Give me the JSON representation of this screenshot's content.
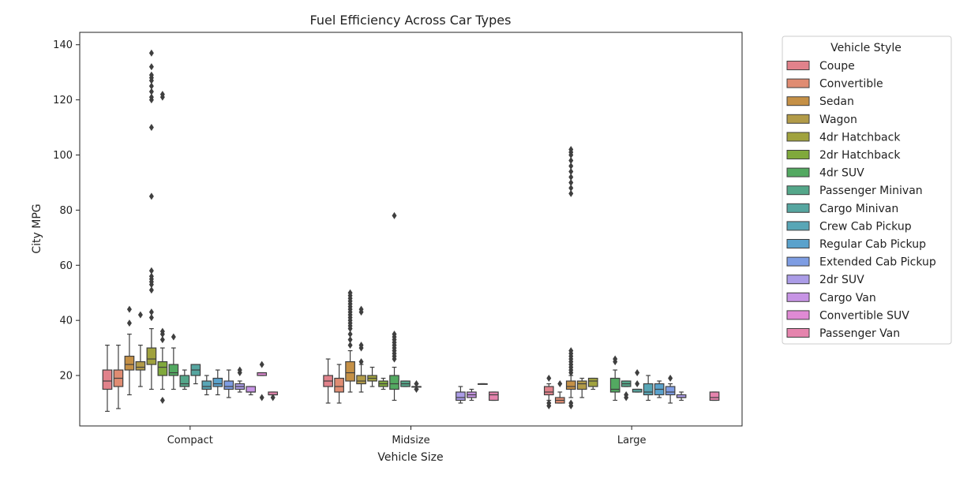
{
  "chart_data": {
    "type": "boxplot",
    "title": "Fuel Efficiency Across Car Types",
    "xlabel": "Vehicle Size",
    "ylabel": "City MPG",
    "categories": [
      "Compact",
      "Midsize",
      "Large"
    ],
    "ylim": [
      1.7,
      144.5
    ],
    "yticks": [
      20,
      40,
      60,
      80,
      100,
      120,
      140
    ],
    "legend": {
      "title": "Vehicle Style",
      "placement": "outside-right"
    },
    "grid": false,
    "series": [
      {
        "name": "Coupe",
        "color": "#e1828b",
        "boxes": [
          {
            "category": "Compact",
            "whislo": 7,
            "q1": 15,
            "median": 18,
            "q3": 22,
            "whishi": 31,
            "fliers": []
          },
          {
            "category": "Midsize",
            "whislo": 10,
            "q1": 16,
            "median": 18,
            "q3": 20,
            "whishi": 26,
            "fliers": []
          },
          {
            "category": "Large",
            "whislo": 11,
            "q1": 13,
            "median": 14,
            "q3": 16,
            "whishi": 17,
            "fliers": [
              9,
              10,
              19
            ]
          }
        ]
      },
      {
        "name": "Convertible",
        "color": "#e08c72",
        "boxes": [
          {
            "category": "Compact",
            "whislo": 8,
            "q1": 16,
            "median": 19,
            "q3": 22,
            "whishi": 31,
            "fliers": []
          },
          {
            "category": "Midsize",
            "whislo": 10,
            "q1": 14,
            "median": 16,
            "q3": 19,
            "whishi": 24,
            "fliers": []
          },
          {
            "category": "Large",
            "whislo": 10,
            "q1": 10,
            "median": 11,
            "q3": 12,
            "whishi": 14,
            "fliers": [
              17
            ]
          }
        ]
      },
      {
        "name": "Sedan",
        "color": "#c59046",
        "boxes": [
          {
            "category": "Compact",
            "whislo": 13,
            "q1": 22,
            "median": 24,
            "q3": 27,
            "whishi": 35,
            "fliers": [
              39,
              44
            ]
          },
          {
            "category": "Midsize",
            "whislo": 14,
            "q1": 18,
            "median": 21,
            "q3": 25,
            "whishi": 29,
            "fliers": [
              31,
              33,
              35,
              37,
              38,
              39,
              40,
              41,
              42,
              43,
              44,
              45,
              46,
              47,
              48,
              49,
              50
            ]
          },
          {
            "category": "Large",
            "whislo": 12,
            "q1": 15,
            "median": 16,
            "q3": 18,
            "whishi": 20,
            "fliers": [
              9,
              10,
              21,
              22,
              23,
              24,
              25,
              26,
              27,
              28,
              29,
              86,
              88,
              90,
              92,
              94,
              96,
              98,
              100,
              101,
              102
            ]
          }
        ]
      },
      {
        "name": "Wagon",
        "color": "#b29b48",
        "boxes": [
          {
            "category": "Compact",
            "whislo": 16,
            "q1": 22,
            "median": 23,
            "q3": 25,
            "whishi": 31,
            "fliers": [
              42
            ]
          },
          {
            "category": "Midsize",
            "whislo": 14,
            "q1": 17,
            "median": 18,
            "q3": 20,
            "whishi": 24,
            "fliers": [
              25,
              30,
              31,
              43,
              44
            ]
          },
          {
            "category": "Large",
            "whislo": 12,
            "q1": 15,
            "median": 17,
            "q3": 18,
            "whishi": 19,
            "fliers": []
          }
        ]
      },
      {
        "name": "4dr Hatchback",
        "color": "#a0a23e",
        "boxes": [
          {
            "category": "Compact",
            "whislo": 15,
            "q1": 24,
            "median": 26,
            "q3": 30,
            "whishi": 37,
            "fliers": [
              41,
              43,
              51,
              53,
              54,
              55,
              56,
              58,
              85,
              110,
              120,
              121,
              123,
              125,
              127,
              128,
              129,
              132,
              137
            ]
          },
          {
            "category": "Midsize",
            "whislo": 16,
            "q1": 18,
            "median": 19,
            "q3": 20,
            "whishi": 23,
            "fliers": []
          },
          {
            "category": "Large",
            "whislo": 15,
            "q1": 16,
            "median": 18,
            "q3": 19,
            "whishi": 19,
            "fliers": []
          }
        ]
      },
      {
        "name": "2dr Hatchback",
        "color": "#80a93c",
        "boxes": [
          {
            "category": "Compact",
            "whislo": 15,
            "q1": 20,
            "median": 23,
            "q3": 25,
            "whishi": 30,
            "fliers": [
              11,
              33,
              35,
              36,
              121,
              122
            ]
          },
          {
            "category": "Midsize",
            "whislo": 15,
            "q1": 16,
            "median": 17,
            "q3": 18,
            "whishi": 19,
            "fliers": []
          },
          {
            "category": "Large",
            "whislo": null,
            "q1": null,
            "median": null,
            "q3": null,
            "whishi": null,
            "fliers": []
          }
        ]
      },
      {
        "name": "4dr SUV",
        "color": "#53a961",
        "boxes": [
          {
            "category": "Compact",
            "whislo": 15,
            "q1": 20,
            "median": 21,
            "q3": 24,
            "whishi": 30,
            "fliers": [
              34
            ]
          },
          {
            "category": "Midsize",
            "whislo": 11,
            "q1": 15,
            "median": 17,
            "q3": 20,
            "whishi": 23,
            "fliers": [
              26,
              27,
              28,
              29,
              30,
              31,
              32,
              33,
              34,
              35,
              78
            ]
          },
          {
            "category": "Large",
            "whislo": 11,
            "q1": 14,
            "median": 15,
            "q3": 19,
            "whishi": 22,
            "fliers": [
              25,
              26
            ]
          }
        ]
      },
      {
        "name": "Passenger Minivan",
        "color": "#54a78a",
        "boxes": [
          {
            "category": "Compact",
            "whislo": 15,
            "q1": 16,
            "median": 17,
            "q3": 20,
            "whishi": 22,
            "fliers": []
          },
          {
            "category": "Midsize",
            "whislo": 16,
            "q1": 16,
            "median": 17,
            "q3": 18,
            "whishi": 18,
            "fliers": []
          },
          {
            "category": "Large",
            "whislo": 16,
            "q1": 16,
            "median": 17,
            "q3": 18,
            "whishi": 18,
            "fliers": [
              12,
              13
            ]
          }
        ]
      },
      {
        "name": "Cargo Minivan",
        "color": "#56a6a0",
        "boxes": [
          {
            "category": "Compact",
            "whislo": 17,
            "q1": 20,
            "median": 22,
            "q3": 24,
            "whishi": 24,
            "fliers": []
          },
          {
            "category": "Midsize",
            "whislo": 15,
            "q1": 16,
            "median": 16,
            "q3": 16,
            "whishi": 17,
            "fliers": [
              15,
              17
            ]
          },
          {
            "category": "Large",
            "whislo": 14,
            "q1": 14,
            "median": 15,
            "q3": 15,
            "whishi": 15,
            "fliers": [
              17,
              21
            ]
          }
        ]
      },
      {
        "name": "Crew Cab Pickup",
        "color": "#58a6b6",
        "boxes": [
          {
            "category": "Compact",
            "whislo": 13,
            "q1": 15,
            "median": 16,
            "q3": 18,
            "whishi": 20,
            "fliers": []
          },
          {
            "category": "Midsize",
            "whislo": null,
            "q1": null,
            "median": null,
            "q3": null,
            "whishi": null,
            "fliers": []
          },
          {
            "category": "Large",
            "whislo": 11,
            "q1": 13,
            "median": 14,
            "q3": 17,
            "whishi": 20,
            "fliers": []
          }
        ]
      },
      {
        "name": "Regular Cab Pickup",
        "color": "#5aa2cc",
        "boxes": [
          {
            "category": "Compact",
            "whislo": 13,
            "q1": 16,
            "median": 17,
            "q3": 19,
            "whishi": 22,
            "fliers": []
          },
          {
            "category": "Midsize",
            "whislo": null,
            "q1": null,
            "median": null,
            "q3": null,
            "whishi": null,
            "fliers": []
          },
          {
            "category": "Large",
            "whislo": 12,
            "q1": 13,
            "median": 15,
            "q3": 17,
            "whishi": 18,
            "fliers": []
          }
        ]
      },
      {
        "name": "Extended Cab Pickup",
        "color": "#7e9de3",
        "boxes": [
          {
            "category": "Compact",
            "whislo": 12,
            "q1": 15,
            "median": 16,
            "q3": 18,
            "whishi": 22,
            "fliers": []
          },
          {
            "category": "Midsize",
            "whislo": null,
            "q1": null,
            "median": null,
            "q3": null,
            "whishi": null,
            "fliers": []
          },
          {
            "category": "Large",
            "whislo": 10,
            "q1": 13,
            "median": 14,
            "q3": 16,
            "whishi": 17,
            "fliers": [
              19
            ]
          }
        ]
      },
      {
        "name": "2dr SUV",
        "color": "#ab9ce7",
        "boxes": [
          {
            "category": "Compact",
            "whislo": 14,
            "q1": 15,
            "median": 16,
            "q3": 17,
            "whishi": 18,
            "fliers": [
              21,
              22
            ]
          },
          {
            "category": "Midsize",
            "whislo": 10,
            "q1": 11,
            "median": 12,
            "q3": 14,
            "whishi": 16,
            "fliers": []
          },
          {
            "category": "Large",
            "whislo": 11,
            "q1": 12,
            "median": 12,
            "q3": 13,
            "whishi": 14,
            "fliers": []
          }
        ]
      },
      {
        "name": "Cargo Van",
        "color": "#c794e5",
        "boxes": [
          {
            "category": "Compact",
            "whislo": 13,
            "q1": 14,
            "median": 14,
            "q3": 16,
            "whishi": 16,
            "fliers": []
          },
          {
            "category": "Midsize",
            "whislo": 11,
            "q1": 12,
            "median": 13,
            "q3": 14,
            "whishi": 15,
            "fliers": []
          },
          {
            "category": "Large",
            "whislo": null,
            "q1": null,
            "median": null,
            "q3": null,
            "whishi": null,
            "fliers": []
          }
        ]
      },
      {
        "name": "Convertible SUV",
        "color": "#df8ad4",
        "boxes": [
          {
            "category": "Compact",
            "whislo": 20,
            "q1": 20,
            "median": 21,
            "q3": 21,
            "whishi": 21,
            "fliers": [
              12,
              24
            ]
          },
          {
            "category": "Midsize",
            "whislo": 17,
            "q1": 17,
            "median": 17,
            "q3": 17,
            "whishi": 17,
            "fliers": []
          },
          {
            "category": "Large",
            "whislo": null,
            "q1": null,
            "median": null,
            "q3": null,
            "whishi": null,
            "fliers": []
          }
        ]
      },
      {
        "name": "Passenger Van",
        "color": "#e584ad",
        "boxes": [
          {
            "category": "Compact",
            "whislo": 13,
            "q1": 13,
            "median": 13,
            "q3": 14,
            "whishi": 14,
            "fliers": [
              12
            ]
          },
          {
            "category": "Midsize",
            "whislo": 11,
            "q1": 11,
            "median": 13,
            "q3": 14,
            "whishi": 14,
            "fliers": []
          },
          {
            "category": "Large",
            "whislo": 11,
            "q1": 11,
            "median": 12,
            "q3": 14,
            "whishi": 14,
            "fliers": []
          }
        ]
      }
    ]
  }
}
